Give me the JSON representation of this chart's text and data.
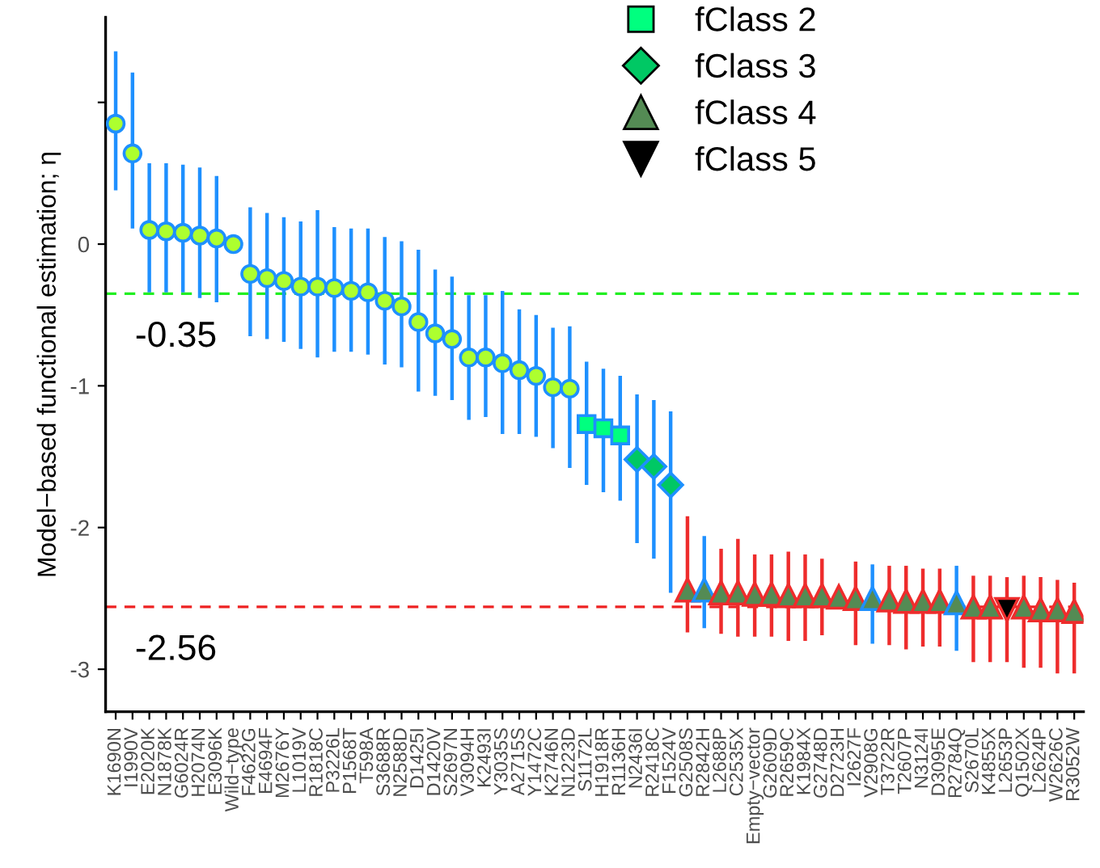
{
  "chart_data": {
    "type": "scatter",
    "ylabel": "Model−based functional estimation; η",
    "categories": [
      "K1690N",
      "I1990V",
      "E2020K",
      "N1878K",
      "G6024R",
      "H2074N",
      "E3096K",
      "Wild−type",
      "F4622G",
      "E4694F",
      "M2676Y",
      "L1019V",
      "R1818C",
      "P3226L",
      "P1568T",
      "T598A",
      "S3688R",
      "N2588D",
      "D1425I",
      "D1420V",
      "S2697N",
      "V3094H",
      "K2493I",
      "Y3035S",
      "A2715S",
      "Y1472C",
      "K2746N",
      "N1223D",
      "S1172L",
      "H1918R",
      "R1136H",
      "N2436I",
      "R2418C",
      "F1524V",
      "G2508S",
      "R2842H",
      "L2688P",
      "C2535X",
      "Empty−vector",
      "G2609D",
      "R2659C",
      "K1984X",
      "G2748D",
      "D2723H",
      "I2627F",
      "V2908G",
      "T3722R",
      "T2607P",
      "N3124I",
      "D3095E",
      "R2784Q",
      "S2670L",
      "K4855X",
      "L2653P",
      "Q1502X",
      "L2624P",
      "W2626C",
      "R3052W"
    ],
    "ylim": [
      -3.3,
      1.6
    ],
    "yticks": [
      {
        "value": 1,
        "label": null
      },
      0,
      -1,
      -2,
      -3
    ],
    "legend": "top",
    "grid": false,
    "series": [
      {
        "marker": "circle",
        "color": "#adff2f",
        "values": [
          0.85,
          0.64,
          0.1,
          0.09,
          0.08,
          0.06,
          0.04,
          0.0,
          -0.21,
          -0.24,
          -0.26,
          -0.3,
          -0.3,
          -0.31,
          -0.33,
          -0.34,
          -0.4,
          -0.44,
          -0.55,
          -0.63,
          -0.67,
          -0.8,
          -0.8,
          -0.84,
          -0.89,
          -0.93,
          -1.01,
          -1.02,
          null,
          null,
          null,
          null,
          null,
          null,
          null,
          null,
          null,
          null,
          null,
          null,
          null,
          null,
          null,
          null,
          null,
          null,
          null,
          null,
          null,
          null,
          null,
          null,
          null,
          null,
          null,
          null,
          null,
          null
        ],
        "errors": [
          [
            0.38,
            1.36
          ],
          [
            0.11,
            1.21
          ],
          [
            -0.34,
            0.57
          ],
          [
            -0.34,
            0.57
          ],
          [
            -0.34,
            0.56
          ],
          [
            -0.38,
            0.54
          ],
          [
            -0.41,
            0.48
          ],
          null,
          [
            -0.65,
            0.26
          ],
          [
            -0.67,
            0.22
          ],
          [
            -0.69,
            0.19
          ],
          [
            -0.74,
            0.16
          ],
          [
            -0.8,
            0.24
          ],
          [
            -0.76,
            0.12
          ],
          [
            -0.76,
            0.11
          ],
          [
            -0.78,
            0.11
          ],
          [
            -0.85,
            0.05
          ],
          [
            -0.87,
            0.02
          ],
          [
            -1.04,
            -0.04
          ],
          [
            -1.07,
            -0.18
          ],
          [
            -1.1,
            -0.23
          ],
          [
            -1.24,
            -0.36
          ],
          [
            -1.22,
            -0.36
          ],
          [
            -1.34,
            -0.33
          ],
          [
            -1.34,
            -0.46
          ],
          [
            -1.36,
            -0.5
          ],
          [
            -1.44,
            -0.59
          ],
          [
            -1.58,
            -0.58
          ],
          null,
          null,
          null,
          null,
          null,
          null,
          null,
          null,
          null,
          null,
          null,
          null,
          null,
          null,
          null,
          null,
          null,
          null,
          null,
          null,
          null,
          null,
          null,
          null,
          null,
          null,
          null,
          null,
          null,
          null
        ],
        "colors": [
          "#1e90ff",
          "#1e90ff",
          "#1e90ff",
          "#1e90ff",
          "#1e90ff",
          "#1e90ff",
          "#1e90ff",
          "#1e90ff",
          "#1e90ff",
          "#1e90ff",
          "#1e90ff",
          "#1e90ff",
          "#1e90ff",
          "#1e90ff",
          "#1e90ff",
          "#1e90ff",
          "#1e90ff",
          "#1e90ff",
          "#1e90ff",
          "#1e90ff",
          "#1e90ff",
          "#1e90ff",
          "#1e90ff",
          "#1e90ff",
          "#1e90ff",
          "#1e90ff",
          "#1e90ff",
          "#1e90ff",
          null,
          null,
          null,
          null,
          null,
          null,
          null,
          null,
          null,
          null,
          null,
          null,
          null,
          null,
          null,
          null,
          null,
          null,
          null,
          null,
          null,
          null,
          null,
          null,
          null,
          null,
          null,
          null,
          null,
          null
        ]
      },
      {
        "name": "fClass 2",
        "marker": "square",
        "color": "#00ff7f",
        "values": [
          null,
          null,
          null,
          null,
          null,
          null,
          null,
          null,
          null,
          null,
          null,
          null,
          null,
          null,
          null,
          null,
          null,
          null,
          null,
          null,
          null,
          null,
          null,
          null,
          null,
          null,
          null,
          null,
          -1.27,
          -1.3,
          -1.35,
          null,
          null,
          null,
          null,
          null,
          null,
          null,
          null,
          null,
          null,
          null,
          null,
          null,
          null,
          null,
          null,
          null,
          null,
          null,
          null,
          null,
          null,
          null,
          null,
          null,
          null,
          null
        ],
        "errors": [
          null,
          null,
          null,
          null,
          null,
          null,
          null,
          null,
          null,
          null,
          null,
          null,
          null,
          null,
          null,
          null,
          null,
          null,
          null,
          null,
          null,
          null,
          null,
          null,
          null,
          null,
          null,
          null,
          [
            -1.7,
            -0.83
          ],
          [
            -1.75,
            -0.88
          ],
          [
            -1.81,
            -0.93
          ],
          null,
          null,
          null,
          null,
          null,
          null,
          null,
          null,
          null,
          null,
          null,
          null,
          null,
          null,
          null,
          null,
          null,
          null,
          null,
          null,
          null,
          null,
          null,
          null,
          null,
          null,
          null
        ],
        "colors": [
          null,
          null,
          null,
          null,
          null,
          null,
          null,
          null,
          null,
          null,
          null,
          null,
          null,
          null,
          null,
          null,
          null,
          null,
          null,
          null,
          null,
          null,
          null,
          null,
          null,
          null,
          null,
          null,
          "#1e90ff",
          "#1e90ff",
          "#1e90ff",
          null,
          null,
          null,
          null,
          null,
          null,
          null,
          null,
          null,
          null,
          null,
          null,
          null,
          null,
          null,
          null,
          null,
          null,
          null,
          null,
          null,
          null,
          null,
          null,
          null,
          null,
          null
        ]
      },
      {
        "name": "fClass 3",
        "marker": "diamond",
        "color": "#00c864",
        "values": [
          null,
          null,
          null,
          null,
          null,
          null,
          null,
          null,
          null,
          null,
          null,
          null,
          null,
          null,
          null,
          null,
          null,
          null,
          null,
          null,
          null,
          null,
          null,
          null,
          null,
          null,
          null,
          null,
          null,
          null,
          null,
          -1.52,
          -1.57,
          -1.7,
          null,
          null,
          null,
          null,
          null,
          null,
          null,
          null,
          null,
          null,
          null,
          null,
          null,
          null,
          null,
          null,
          null,
          null,
          null,
          null,
          null,
          null,
          null,
          null
        ],
        "errors": [
          null,
          null,
          null,
          null,
          null,
          null,
          null,
          null,
          null,
          null,
          null,
          null,
          null,
          null,
          null,
          null,
          null,
          null,
          null,
          null,
          null,
          null,
          null,
          null,
          null,
          null,
          null,
          null,
          null,
          null,
          null,
          [
            -2.11,
            -1.06
          ],
          [
            -2.22,
            -1.1
          ],
          [
            -2.46,
            -1.18
          ],
          null,
          null,
          null,
          null,
          null,
          null,
          null,
          null,
          null,
          null,
          null,
          null,
          null,
          null,
          null,
          null,
          null,
          null,
          null,
          null,
          null,
          null,
          null,
          null
        ],
        "colors": [
          null,
          null,
          null,
          null,
          null,
          null,
          null,
          null,
          null,
          null,
          null,
          null,
          null,
          null,
          null,
          null,
          null,
          null,
          null,
          null,
          null,
          null,
          null,
          null,
          null,
          null,
          null,
          null,
          null,
          null,
          null,
          "#1e90ff",
          "#1e90ff",
          "#1e90ff",
          null,
          null,
          null,
          null,
          null,
          null,
          null,
          null,
          null,
          null,
          null,
          null,
          null,
          null,
          null,
          null,
          null,
          null,
          null,
          null,
          null,
          null,
          null,
          null
        ]
      },
      {
        "name": "fClass 4",
        "marker": "triangle",
        "color": "#548b54",
        "values": [
          null,
          null,
          null,
          null,
          null,
          null,
          null,
          null,
          null,
          null,
          null,
          null,
          null,
          null,
          null,
          null,
          null,
          null,
          null,
          null,
          null,
          null,
          null,
          null,
          null,
          null,
          null,
          null,
          null,
          null,
          null,
          null,
          null,
          null,
          -2.44,
          -2.44,
          -2.46,
          -2.46,
          -2.47,
          -2.47,
          -2.48,
          -2.48,
          -2.48,
          -2.49,
          -2.5,
          -2.5,
          -2.51,
          -2.52,
          -2.52,
          -2.52,
          -2.53,
          -2.56,
          -2.56,
          null,
          -2.56,
          -2.58,
          -2.58,
          -2.59
        ],
        "errors": [
          null,
          null,
          null,
          null,
          null,
          null,
          null,
          null,
          null,
          null,
          null,
          null,
          null,
          null,
          null,
          null,
          null,
          null,
          null,
          null,
          null,
          null,
          null,
          null,
          null,
          null,
          null,
          null,
          null,
          null,
          null,
          null,
          null,
          null,
          [
            -2.74,
            -1.92
          ],
          [
            -2.71,
            -2.06
          ],
          [
            -2.75,
            -2.15
          ],
          [
            -2.77,
            -2.08
          ],
          [
            -2.77,
            -2.19
          ],
          [
            -2.77,
            -2.19
          ],
          [
            -2.8,
            -2.17
          ],
          [
            -2.8,
            -2.19
          ],
          [
            -2.76,
            -2.22
          ],
          null,
          [
            -2.83,
            -2.24
          ],
          [
            -2.82,
            -2.26
          ],
          [
            -2.83,
            -2.27
          ],
          [
            -2.86,
            -2.27
          ],
          [
            -2.84,
            -2.29
          ],
          [
            -2.84,
            -2.29
          ],
          [
            -2.87,
            -2.27
          ],
          [
            -2.95,
            -2.34
          ],
          [
            -2.95,
            -2.34
          ],
          null,
          [
            -2.99,
            -2.34
          ],
          [
            -2.99,
            -2.35
          ],
          [
            -3.03,
            -2.37
          ],
          [
            -3.03,
            -2.39
          ]
        ],
        "colors": [
          null,
          null,
          null,
          null,
          null,
          null,
          null,
          null,
          null,
          null,
          null,
          null,
          null,
          null,
          null,
          null,
          null,
          null,
          null,
          null,
          null,
          null,
          null,
          null,
          null,
          null,
          null,
          null,
          null,
          null,
          null,
          null,
          null,
          null,
          "#ee2c2c",
          "#1e90ff",
          "#ee2c2c",
          "#ee2c2c",
          "#ee2c2c",
          "#ee2c2c",
          "#ee2c2c",
          "#ee2c2c",
          "#ee2c2c",
          "#ee2c2c",
          "#ee2c2c",
          "#1e90ff",
          "#ee2c2c",
          "#ee2c2c",
          "#ee2c2c",
          "#ee2c2c",
          "#1e90ff",
          "#ee2c2c",
          "#ee2c2c",
          null,
          "#ee2c2c",
          "#ee2c2c",
          "#ee2c2c",
          "#ee2c2c"
        ]
      },
      {
        "name": "fClass 5",
        "marker": "triangle_down",
        "color": "#000000",
        "values": [
          null,
          null,
          null,
          null,
          null,
          null,
          null,
          null,
          null,
          null,
          null,
          null,
          null,
          null,
          null,
          null,
          null,
          null,
          null,
          null,
          null,
          null,
          null,
          null,
          null,
          null,
          null,
          null,
          null,
          null,
          null,
          null,
          null,
          null,
          null,
          null,
          null,
          null,
          null,
          null,
          null,
          null,
          null,
          null,
          null,
          null,
          null,
          null,
          null,
          null,
          null,
          null,
          null,
          -2.58,
          null,
          null,
          null,
          null
        ],
        "errors": [
          null,
          null,
          null,
          null,
          null,
          null,
          null,
          null,
          null,
          null,
          null,
          null,
          null,
          null,
          null,
          null,
          null,
          null,
          null,
          null,
          null,
          null,
          null,
          null,
          null,
          null,
          null,
          null,
          null,
          null,
          null,
          null,
          null,
          null,
          null,
          null,
          null,
          null,
          null,
          null,
          null,
          null,
          null,
          null,
          null,
          null,
          null,
          null,
          null,
          null,
          null,
          null,
          null,
          [
            -2.95,
            -2.35
          ],
          null,
          null,
          null,
          null
        ],
        "colors": [
          null,
          null,
          null,
          null,
          null,
          null,
          null,
          null,
          null,
          null,
          null,
          null,
          null,
          null,
          null,
          null,
          null,
          null,
          null,
          null,
          null,
          null,
          null,
          null,
          null,
          null,
          null,
          null,
          null,
          null,
          null,
          null,
          null,
          null,
          null,
          null,
          null,
          null,
          null,
          null,
          null,
          null,
          null,
          null,
          null,
          null,
          null,
          null,
          null,
          null,
          null,
          null,
          null,
          "#ee2c2c",
          null,
          null,
          null,
          null
        ]
      }
    ],
    "ref_lines": [
      {
        "axis": "y",
        "value": -0.35,
        "label": "-0.35",
        "color": "#22ee22",
        "line_style": "dashed"
      },
      {
        "axis": "y",
        "value": -2.56,
        "label": "-2.56",
        "color": "#ee2222",
        "line_style": "dashed"
      }
    ]
  }
}
